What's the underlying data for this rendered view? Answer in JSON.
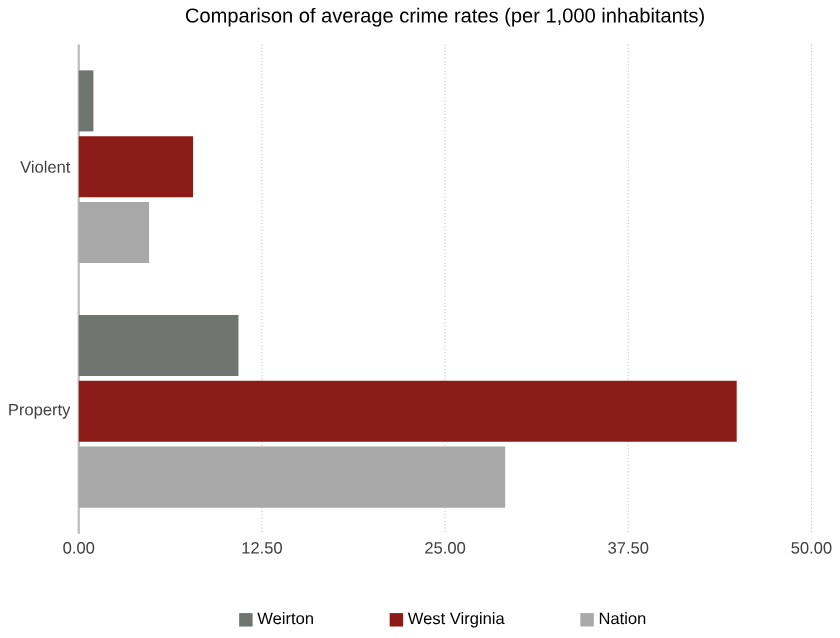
{
  "chart_data": {
    "type": "bar",
    "orientation": "horizontal",
    "title": "Comparison of average crime rates (per 1,000 inhabitants)",
    "categories": [
      "Violent",
      "Property"
    ],
    "series": [
      {
        "name": "Weirton",
        "color": "#6f7471",
        "values": [
          1.0,
          10.9
        ]
      },
      {
        "name": "West Virginia",
        "color": "#8b1c17",
        "values": [
          7.8,
          44.9
        ]
      },
      {
        "name": "Nation",
        "color": "#a8a8a8",
        "values": [
          4.8,
          29.1
        ]
      }
    ],
    "xlim": [
      0,
      50
    ],
    "xticks": [
      {
        "value": 0,
        "label": "0.00"
      },
      {
        "value": 12.5,
        "label": "12.50"
      },
      {
        "value": 25,
        "label": "25.00"
      },
      {
        "value": 37.5,
        "label": "37.50"
      },
      {
        "value": 50,
        "label": "50.00"
      }
    ],
    "grid": "x",
    "legend": "bottom"
  }
}
